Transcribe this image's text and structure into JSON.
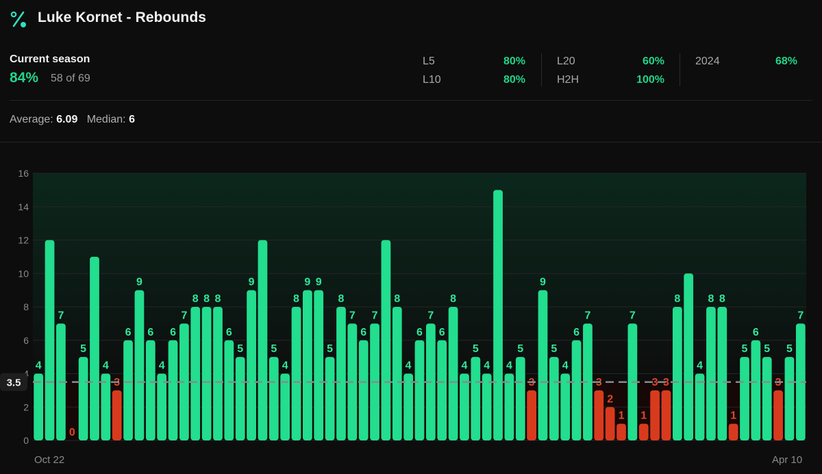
{
  "header": {
    "title": "Luke Kornet - Rebounds",
    "icon": "percent-icon"
  },
  "season": {
    "label": "Current season",
    "pct": "84%",
    "count": "58 of 69"
  },
  "splits": [
    {
      "label": "L5",
      "value": "80%"
    },
    {
      "label": "L10",
      "value": "80%"
    },
    {
      "label": "L20",
      "value": "60%"
    },
    {
      "label": "H2H",
      "value": "100%"
    },
    {
      "label": "2024",
      "value": "68%"
    }
  ],
  "averages": {
    "avg_label": "Average:",
    "avg_value": "6.09",
    "median_label": "Median:",
    "median_value": "6"
  },
  "colors": {
    "over": "#22de8e",
    "under": "#d83a1e",
    "over_label": "#2fe79a",
    "under_label": "#e0452a",
    "line": "#8a8a8a"
  },
  "chart_data": {
    "type": "bar",
    "title": "Luke Kornet - Rebounds",
    "ylim": [
      0,
      16
    ],
    "yticks": [
      0,
      2,
      4,
      6,
      8,
      10,
      12,
      14,
      16
    ],
    "line": 3.5,
    "line_label": "3.5",
    "x_start_label": "Oct 22",
    "x_end_label": "Apr 10",
    "values": [
      4,
      12,
      7,
      0,
      5,
      11,
      4,
      3,
      6,
      9,
      6,
      4,
      6,
      7,
      8,
      8,
      8,
      6,
      5,
      9,
      12,
      5,
      4,
      8,
      9,
      9,
      5,
      8,
      7,
      6,
      7,
      12,
      8,
      4,
      6,
      7,
      6,
      8,
      4,
      5,
      4,
      15,
      4,
      5,
      3,
      9,
      5,
      4,
      6,
      7,
      3,
      2,
      1,
      7,
      1,
      3,
      3,
      8,
      10,
      4,
      8,
      8,
      1,
      5,
      6,
      5,
      3,
      5,
      7
    ],
    "labeled": [
      true,
      false,
      true,
      true,
      true,
      false,
      true,
      true,
      true,
      true,
      true,
      true,
      true,
      true,
      true,
      true,
      true,
      true,
      true,
      true,
      false,
      true,
      true,
      true,
      true,
      true,
      true,
      true,
      true,
      true,
      true,
      false,
      true,
      true,
      true,
      true,
      true,
      true,
      true,
      true,
      true,
      false,
      true,
      true,
      true,
      true,
      true,
      true,
      true,
      true,
      true,
      true,
      true,
      true,
      true,
      true,
      true,
      true,
      false,
      true,
      true,
      true,
      true,
      true,
      true,
      true,
      true,
      true,
      true
    ]
  }
}
